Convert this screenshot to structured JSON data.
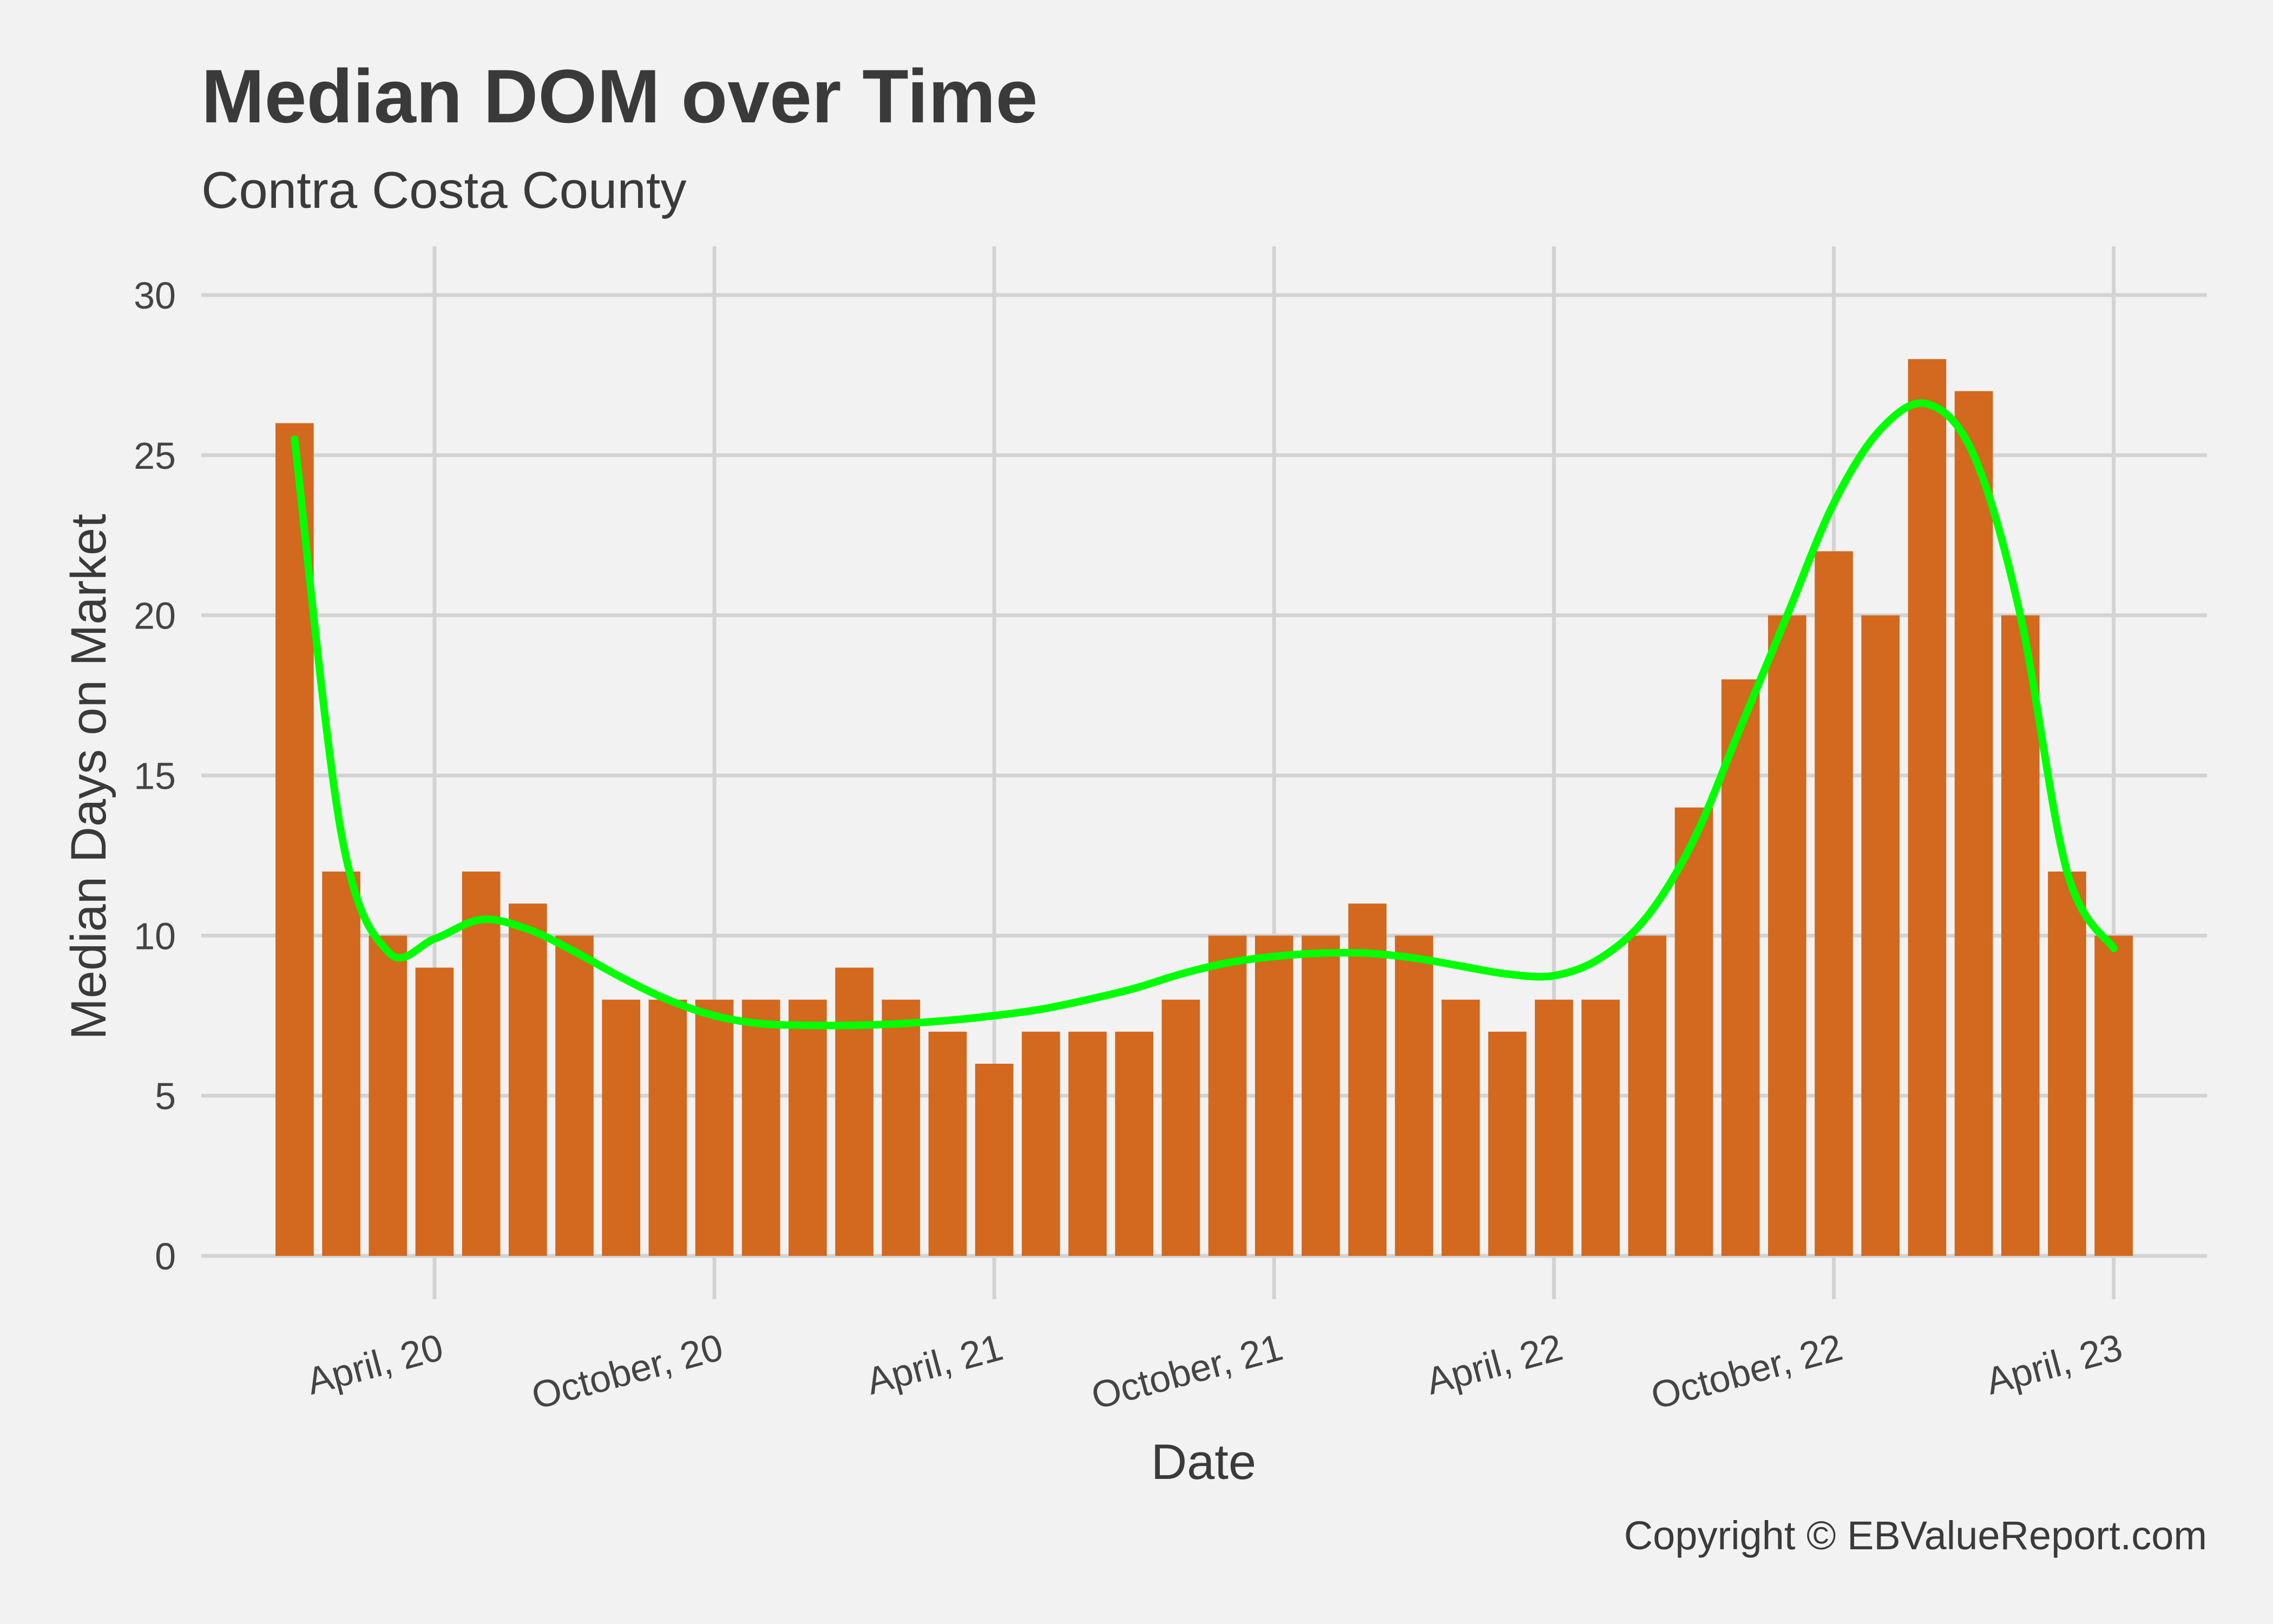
{
  "chart_data": {
    "type": "bar",
    "title": "Median DOM over Time",
    "subtitle": "Contra Costa County",
    "xlabel": "Date",
    "ylabel": "Median Days on Market",
    "caption": "Copyright  © EBValueReport.com",
    "ylim": [
      0,
      31
    ],
    "yticks": [
      0,
      5,
      10,
      15,
      20,
      25,
      30
    ],
    "xticks": [
      {
        "date": "2020-04",
        "label": "April, 20"
      },
      {
        "date": "2020-10",
        "label": "October, 20"
      },
      {
        "date": "2021-04",
        "label": "April, 21"
      },
      {
        "date": "2021-10",
        "label": "October, 21"
      },
      {
        "date": "2022-04",
        "label": "April, 22"
      },
      {
        "date": "2022-10",
        "label": "October, 22"
      },
      {
        "date": "2023-04",
        "label": "April, 23"
      }
    ],
    "x_range": [
      "2019-11",
      "2023-06"
    ],
    "grid": true,
    "legend": "none",
    "bar_color": "#d2691e",
    "trend_color": "#00ff00",
    "categories": [
      "2020-01",
      "2020-02",
      "2020-03",
      "2020-04",
      "2020-05",
      "2020-06",
      "2020-07",
      "2020-08",
      "2020-09",
      "2020-10",
      "2020-11",
      "2020-12",
      "2021-01",
      "2021-02",
      "2021-03",
      "2021-04",
      "2021-05",
      "2021-06",
      "2021-07",
      "2021-08",
      "2021-09",
      "2021-10",
      "2021-11",
      "2021-12",
      "2022-01",
      "2022-02",
      "2022-03",
      "2022-04",
      "2022-05",
      "2022-06",
      "2022-07",
      "2022-08",
      "2022-09",
      "2022-10",
      "2022-11",
      "2022-12",
      "2023-01",
      "2023-02",
      "2023-03",
      "2023-04"
    ],
    "values": [
      26,
      12,
      10,
      9,
      12,
      11,
      10,
      8,
      8,
      8,
      8,
      8,
      9,
      8,
      7,
      6,
      7,
      7,
      7,
      8,
      10,
      10,
      10,
      11,
      10,
      8,
      7,
      8,
      8,
      10,
      14,
      18,
      20,
      22,
      20,
      28,
      27,
      20,
      12,
      10
    ],
    "trend": [
      25.5,
      13.2,
      9.5,
      9.9,
      10.5,
      10.2,
      9.5,
      8.7,
      8.0,
      7.5,
      7.25,
      7.2,
      7.2,
      7.25,
      7.35,
      7.5,
      7.7,
      8.0,
      8.35,
      8.8,
      9.15,
      9.35,
      9.45,
      9.45,
      9.3,
      9.05,
      8.8,
      8.75,
      9.3,
      10.6,
      13.0,
      16.5,
      20.0,
      23.5,
      25.8,
      26.6,
      25.0,
      20.0,
      12.0,
      9.6
    ]
  }
}
